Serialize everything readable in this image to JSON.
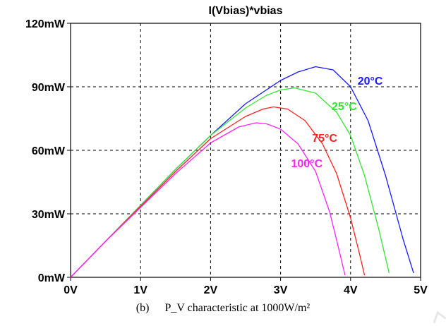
{
  "chart_data": {
    "type": "line",
    "title": "I(Vbias)*vbias",
    "xlabel": "",
    "ylabel": "",
    "x_ticks": [
      "0V",
      "1V",
      "2V",
      "3V",
      "4V",
      "5V"
    ],
    "y_ticks": [
      "0mW",
      "30mW",
      "60mW",
      "90mW",
      "120mW"
    ],
    "xlim": [
      0,
      5
    ],
    "ylim": [
      0,
      120
    ],
    "grid": true,
    "series": [
      {
        "name": "20°C",
        "color": "#1a1aff",
        "x": [
          0,
          0.5,
          1.0,
          1.5,
          2.0,
          2.5,
          3.0,
          3.25,
          3.5,
          3.75,
          4.0,
          4.25,
          4.5,
          4.75,
          4.9
        ],
        "y": [
          0,
          17,
          34,
          51,
          67,
          82,
          93,
          97,
          99.5,
          98,
          90,
          74,
          48,
          18,
          2
        ]
      },
      {
        "name": "25°C",
        "color": "#33e633",
        "x": [
          0,
          0.5,
          1.0,
          1.5,
          2.0,
          2.5,
          2.8,
          3.0,
          3.2,
          3.5,
          3.8,
          4.0,
          4.2,
          4.4,
          4.55
        ],
        "y": [
          0,
          17,
          34,
          51,
          67,
          80,
          86,
          88.5,
          89.5,
          87,
          78,
          67,
          48,
          23,
          2
        ]
      },
      {
        "name": "75°C",
        "color": "#ff2020",
        "x": [
          0,
          0.5,
          1.0,
          1.5,
          2.0,
          2.5,
          2.75,
          2.9,
          3.1,
          3.35,
          3.6,
          3.8,
          4.0,
          4.12,
          4.2
        ],
        "y": [
          0,
          17,
          33.5,
          50,
          65.5,
          76,
          79.5,
          80.5,
          79.5,
          74,
          63,
          49,
          28,
          12,
          1
        ]
      },
      {
        "name": "100°C",
        "color": "#ff22ff",
        "x": [
          0,
          0.5,
          1.0,
          1.5,
          2.0,
          2.4,
          2.65,
          2.8,
          3.0,
          3.25,
          3.5,
          3.7,
          3.82,
          3.92
        ],
        "y": [
          0,
          17,
          33,
          49,
          63.5,
          71,
          73,
          72.5,
          70,
          63,
          50,
          31,
          15,
          1
        ]
      }
    ]
  },
  "caption": {
    "label": "(b)",
    "text": "P_V characteristic at 1000W/m²"
  }
}
